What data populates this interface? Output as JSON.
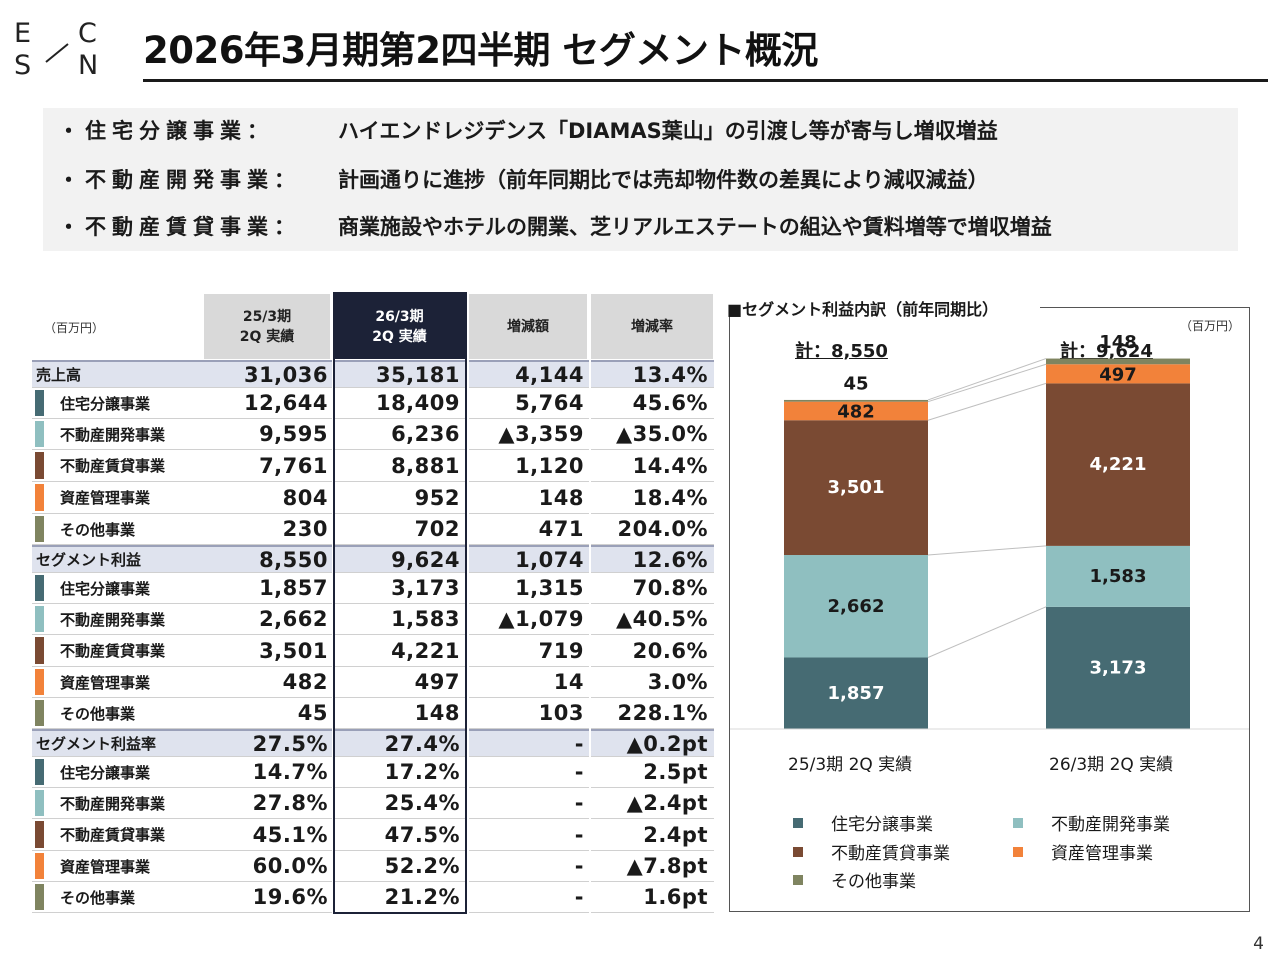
{
  "logo": {
    "letters": [
      "E",
      "C",
      "S",
      "N"
    ]
  },
  "title": "2026年3月期第2四半期 セグメント概況",
  "summary": [
    {
      "bullet": "・",
      "label": "住宅分譲事業：",
      "text": "ハイエンドレジデンス「DIAMAS葉山」の引渡し等が寄与し増収増益"
    },
    {
      "bullet": "・",
      "label": "不動産開発事業：",
      "text": "計画通りに進捗（前年同期比では売却物件数の差異により減収減益）"
    },
    {
      "bullet": "・",
      "label": "不動産賃貸事業：",
      "text": "商業施設やホテルの開業、芝リアルエステートの組込や賃料増等で増収増益"
    }
  ],
  "table": {
    "unit": "（百万円）",
    "headers": {
      "prev_line1": "25/3期",
      "prev_line2": "2Q 実績",
      "cur_line1": "26/3期",
      "cur_line2": "2Q 実績",
      "diff": "増減額",
      "rate": "増減率"
    },
    "rows": [
      {
        "type": "head",
        "label": "売上高",
        "prev": "31,036",
        "cur": "35,181",
        "diff": "4,144",
        "rate": "13.4%"
      },
      {
        "type": "sub",
        "seg": "housing",
        "label": "住宅分譲事業",
        "prev": "12,644",
        "cur": "18,409",
        "diff": "5,764",
        "rate": "45.6%"
      },
      {
        "type": "sub",
        "seg": "development",
        "label": "不動産開発事業",
        "prev": "9,595",
        "cur": "6,236",
        "diff": "▲3,359",
        "rate": "▲35.0%"
      },
      {
        "type": "sub",
        "seg": "leasing",
        "label": "不動産賃貸事業",
        "prev": "7,761",
        "cur": "8,881",
        "diff": "1,120",
        "rate": "14.4%"
      },
      {
        "type": "sub",
        "seg": "asset",
        "label": "資産管理事業",
        "prev": "804",
        "cur": "952",
        "diff": "148",
        "rate": "18.4%"
      },
      {
        "type": "sub",
        "seg": "other",
        "label": "その他事業",
        "prev": "230",
        "cur": "702",
        "diff": "471",
        "rate": "204.0%"
      },
      {
        "type": "head",
        "label": "セグメント利益",
        "prev": "8,550",
        "cur": "9,624",
        "diff": "1,074",
        "rate": "12.6%"
      },
      {
        "type": "sub",
        "seg": "housing",
        "label": "住宅分譲事業",
        "prev": "1,857",
        "cur": "3,173",
        "diff": "1,315",
        "rate": "70.8%"
      },
      {
        "type": "sub",
        "seg": "development",
        "label": "不動産開発事業",
        "prev": "2,662",
        "cur": "1,583",
        "diff": "▲1,079",
        "rate": "▲40.5%"
      },
      {
        "type": "sub",
        "seg": "leasing",
        "label": "不動産賃貸事業",
        "prev": "3,501",
        "cur": "4,221",
        "diff": "719",
        "rate": "20.6%"
      },
      {
        "type": "sub",
        "seg": "asset",
        "label": "資産管理事業",
        "prev": "482",
        "cur": "497",
        "diff": "14",
        "rate": "3.0%"
      },
      {
        "type": "sub",
        "seg": "other",
        "label": "その他事業",
        "prev": "45",
        "cur": "148",
        "diff": "103",
        "rate": "228.1%"
      },
      {
        "type": "head",
        "label": "セグメント利益率",
        "prev": "27.5%",
        "cur": "27.4%",
        "diff": "-",
        "rate": "▲0.2pt"
      },
      {
        "type": "sub",
        "seg": "housing",
        "label": "住宅分譲事業",
        "prev": "14.7%",
        "cur": "17.2%",
        "diff": "-",
        "rate": "2.5pt"
      },
      {
        "type": "sub",
        "seg": "development",
        "label": "不動産開発事業",
        "prev": "27.8%",
        "cur": "25.4%",
        "diff": "-",
        "rate": "▲2.4pt"
      },
      {
        "type": "sub",
        "seg": "leasing",
        "label": "不動産賃貸事業",
        "prev": "45.1%",
        "cur": "47.5%",
        "diff": "-",
        "rate": "2.4pt"
      },
      {
        "type": "sub",
        "seg": "asset",
        "label": "資産管理事業",
        "prev": "60.0%",
        "cur": "52.2%",
        "diff": "-",
        "rate": "▲7.8pt"
      },
      {
        "type": "sub",
        "seg": "other",
        "label": "その他事業",
        "prev": "19.6%",
        "cur": "21.2%",
        "diff": "-",
        "rate": "1.6pt"
      }
    ]
  },
  "colors": {
    "housing": "#466b73",
    "development": "#8fbfc0",
    "leasing": "#7a4a33",
    "asset": "#f2823a",
    "other": "#7f8460",
    "header_dark": "#1c2237"
  },
  "chart_data": {
    "type": "bar",
    "stacked": true,
    "title": "■セグメント利益内訳（前年同期比）",
    "unit": "（百万円）",
    "categories": [
      "25/3期 2Q 実績",
      "26/3期 2Q 実績"
    ],
    "totals_label": [
      "計：8,550",
      "計：9,624"
    ],
    "totals": [
      8550,
      9624
    ],
    "series": [
      {
        "name": "住宅分譲事業",
        "key": "housing",
        "values": [
          1857,
          3173
        ]
      },
      {
        "name": "不動産開発事業",
        "key": "development",
        "values": [
          2662,
          1583
        ]
      },
      {
        "name": "不動産賃貸事業",
        "key": "leasing",
        "values": [
          3501,
          4221
        ]
      },
      {
        "name": "資産管理事業",
        "key": "asset",
        "values": [
          482,
          497
        ]
      },
      {
        "name": "その他事業",
        "key": "other",
        "values": [
          45,
          148
        ]
      }
    ],
    "data_labels": [
      [
        "1,857",
        "2,662",
        "3,501",
        "482",
        "45"
      ],
      [
        "3,173",
        "1,583",
        "4,221",
        "497",
        "148"
      ]
    ],
    "legend": [
      "住宅分譲事業",
      "不動産開発事業",
      "不動産賃貸事業",
      "資産管理事業",
      "その他事業"
    ],
    "legend_position": "bottom"
  },
  "page_number": "4"
}
